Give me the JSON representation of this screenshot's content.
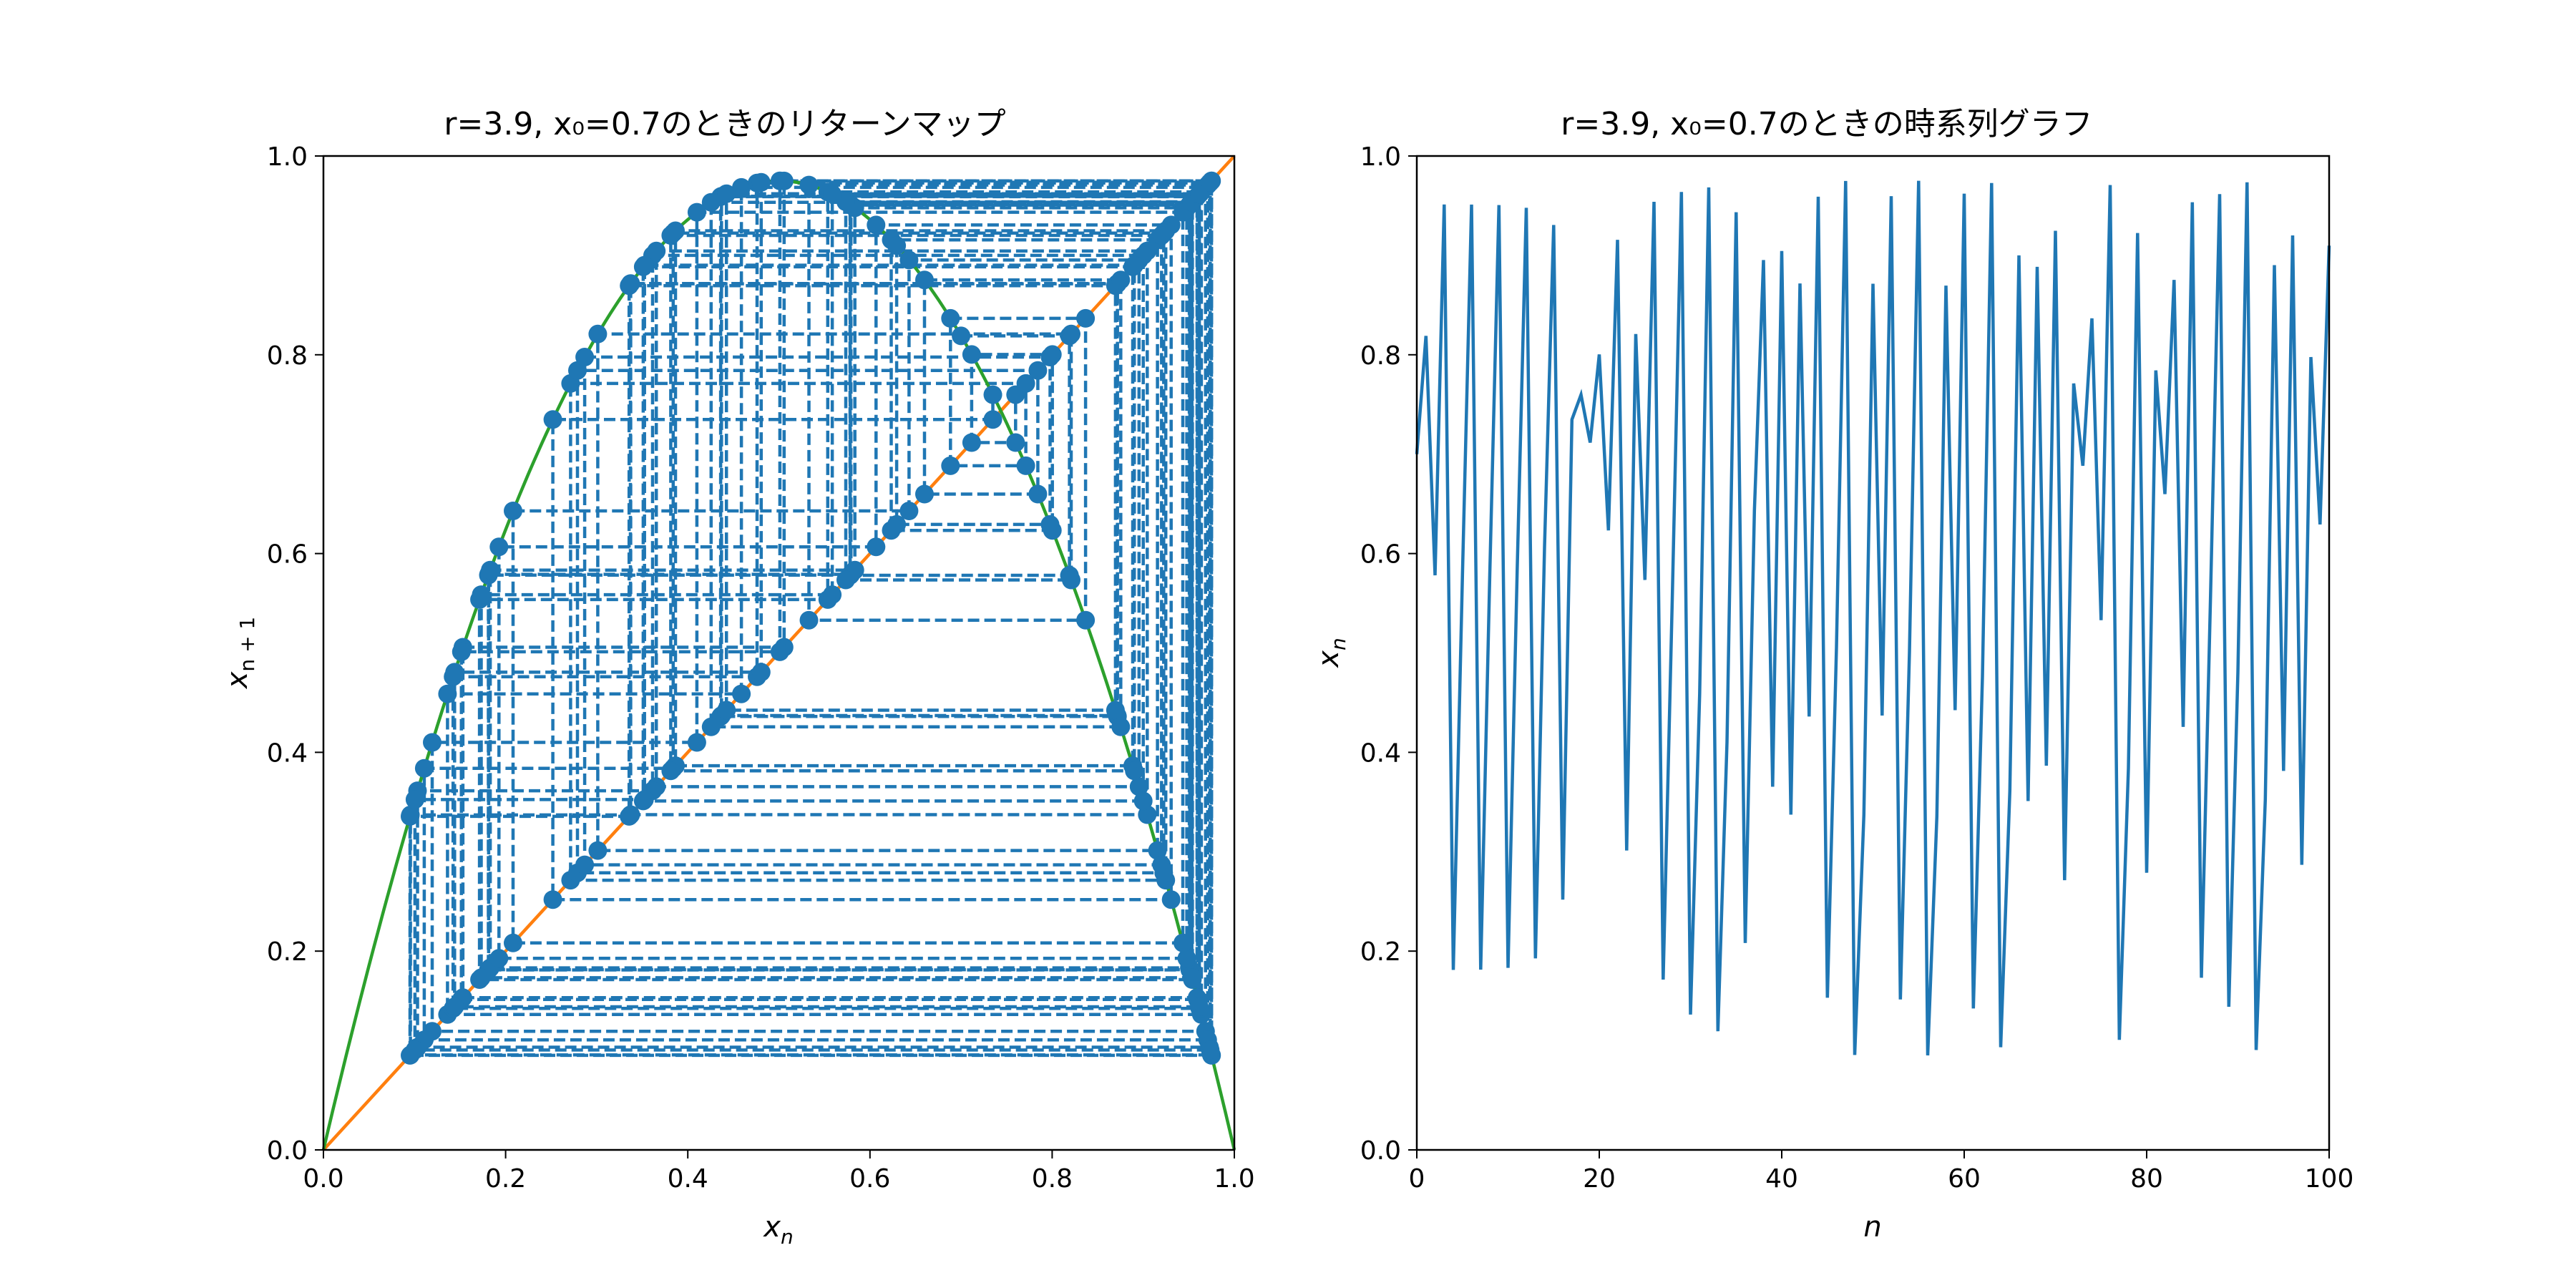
{
  "figure": {
    "background": "#ffffff"
  },
  "chart_data": [
    {
      "type": "line",
      "title": "r=3.9, x₀=0.7のときのリターンマップ",
      "xlabel": "x_n",
      "ylabel": "x_{n+1}",
      "xlim": [
        0,
        1
      ],
      "ylim": [
        0,
        1
      ],
      "xticks": [
        "0.0",
        "0.2",
        "0.4",
        "0.6",
        "0.8",
        "1.0"
      ],
      "yticks": [
        "0.0",
        "0.2",
        "0.4",
        "0.6",
        "0.8",
        "1.0"
      ],
      "grid": false,
      "parameters": {
        "r": 3.9,
        "x0": 0.7,
        "iterations": 100
      },
      "series": [
        {
          "kind": "curve",
          "function": "r*x*(1-x)",
          "color": "#2ca02c"
        },
        {
          "kind": "diagonal",
          "function": "x",
          "color": "#ff7f0e"
        },
        {
          "kind": "cobweb",
          "style": "dashed",
          "markers": true,
          "color": "#1f77b4"
        }
      ]
    },
    {
      "type": "line",
      "title": "r=3.9, x₀=0.7のときの時系列グラフ",
      "xlabel": "n",
      "ylabel": "x_n",
      "xlim": [
        0,
        100
      ],
      "ylim": [
        0,
        1
      ],
      "xticks": [
        "0",
        "20",
        "40",
        "60",
        "80",
        "100"
      ],
      "yticks": [
        "0.0",
        "0.2",
        "0.4",
        "0.6",
        "0.8",
        "1.0"
      ],
      "grid": false,
      "parameters": {
        "r": 3.9,
        "x0": 0.7,
        "n_max": 100
      },
      "series": [
        {
          "kind": "time-series",
          "color": "#1f77b4"
        }
      ]
    }
  ]
}
